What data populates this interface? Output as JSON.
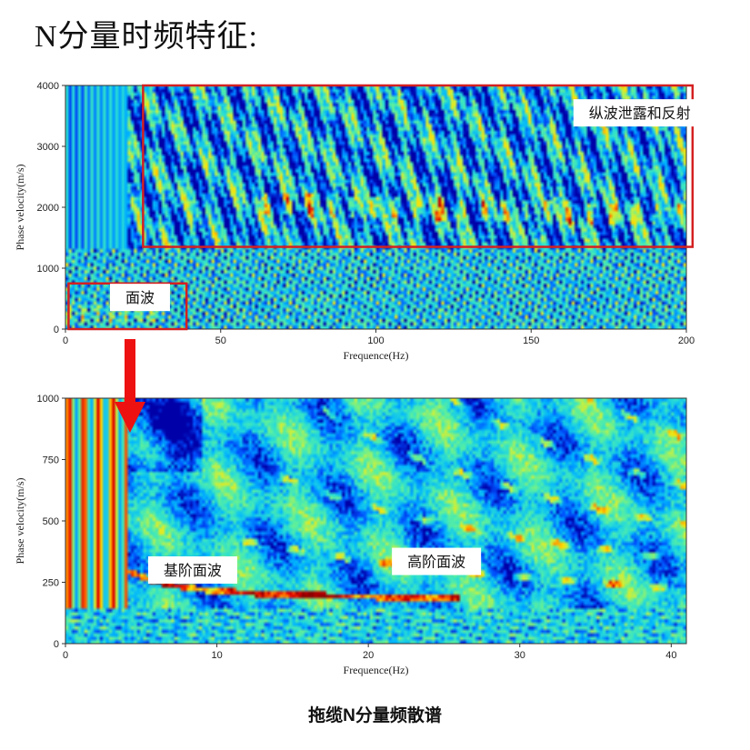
{
  "title": "N分量时频特征:",
  "caption": "拖缆N分量频散谱",
  "colors": {
    "highlight_box": "#d42020",
    "arrow": "#ee1111",
    "annotation_bg": "#ffffff",
    "colormap": [
      "#0000a8",
      "#0050ff",
      "#00b4ff",
      "#2ee0d0",
      "#5ff09a",
      "#c8f040",
      "#ffe000",
      "#ff7a00",
      "#e00000",
      "#900000"
    ]
  },
  "chart_data": [
    {
      "type": "heatmap",
      "title": "",
      "xlabel": "Frequence(Hz)",
      "ylabel": "Phase velocity(m/s)",
      "xlim": [
        0,
        200
      ],
      "ylim": [
        0,
        4000
      ],
      "xticks": [
        0,
        50,
        100,
        150,
        200
      ],
      "yticks": [
        0,
        1000,
        2000,
        3000,
        4000
      ],
      "x_tick_labels": [
        "0",
        "50",
        "100",
        "150",
        "200"
      ],
      "y_tick_labels": [
        "0",
        "1000",
        "2000",
        "3000",
        "4000"
      ],
      "annotations": [
        {
          "text": "纵波泄露和反射",
          "region": {
            "x": [
              25,
              202
            ],
            "y": [
              1350,
              4000
            ]
          },
          "label_at": {
            "x": 185,
            "y": 3550
          }
        },
        {
          "text": "面波",
          "region": {
            "x": [
              1,
              39
            ],
            "y": [
              0,
              750
            ]
          },
          "label_at": {
            "x": 24,
            "y": 520
          }
        }
      ]
    },
    {
      "type": "heatmap",
      "title": "",
      "xlabel": "Frequence(Hz)",
      "ylabel": "Phase velocity(m/s)",
      "xlim": [
        0,
        41
      ],
      "ylim": [
        0,
        1000
      ],
      "xticks": [
        0,
        10,
        20,
        30,
        40
      ],
      "yticks": [
        0,
        250,
        500,
        750,
        1000
      ],
      "x_tick_labels": [
        "0",
        "10",
        "20",
        "30",
        "40"
      ],
      "y_tick_labels": [
        "0",
        "250",
        "500",
        "750",
        "1000"
      ],
      "annotations": [
        {
          "text": "基阶面波",
          "label_at": {
            "x": 8.4,
            "y": 300
          }
        },
        {
          "text": "高阶面波",
          "label_at": {
            "x": 24.5,
            "y": 335
          }
        }
      ]
    }
  ]
}
